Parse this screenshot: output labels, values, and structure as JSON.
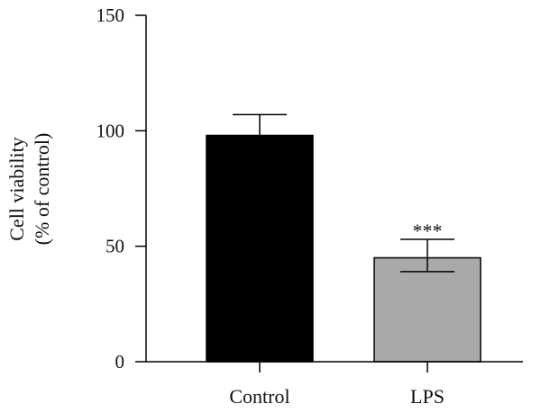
{
  "chart_data": {
    "type": "bar",
    "categories": [
      "Control",
      "LPS"
    ],
    "values": [
      98,
      45
    ],
    "errors_upper": [
      107,
      53
    ],
    "errors_lower": [
      null,
      39
    ],
    "colors": [
      "#000000",
      "#a8a9ab"
    ],
    "ylabel_line1": "Cell viability",
    "ylabel_line2": "(% of control)",
    "ylim": [
      0,
      150
    ],
    "yticks": [
      "0",
      "50",
      "100",
      "150"
    ],
    "significance": [
      "",
      "***"
    ],
    "grid": false
  }
}
